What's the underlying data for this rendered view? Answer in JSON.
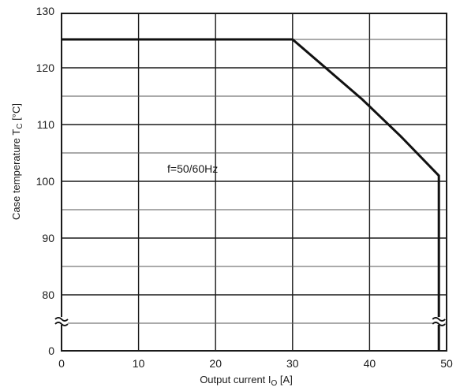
{
  "chart_data": {
    "type": "line",
    "xlabel": "Output current I",
    "xlabel_sub": "O",
    "xlabel_unit": " [A]",
    "ylabel": "Case temperature T",
    "ylabel_sub": "C",
    "ylabel_unit": " [°C]",
    "xlim": [
      0,
      50
    ],
    "ylim": [
      70,
      130
    ],
    "x_ticks": [
      0,
      10,
      20,
      30,
      40,
      50
    ],
    "x_tick_labels": [
      "0",
      "10",
      "20",
      "30",
      "40",
      "50"
    ],
    "y_ticks": [
      80,
      90,
      100,
      110,
      120,
      130
    ],
    "y_tick_labels": [
      "80",
      "90",
      "100",
      "110",
      "120",
      "130"
    ],
    "y_origin_label": "0",
    "y_axis_break": true,
    "grid": true,
    "annotation": "f=50/60Hz",
    "series": [
      {
        "x": [
          0,
          30,
          39,
          44,
          49,
          49
        ],
        "y": [
          125,
          125,
          114.5,
          108,
          101,
          70
        ]
      }
    ]
  }
}
